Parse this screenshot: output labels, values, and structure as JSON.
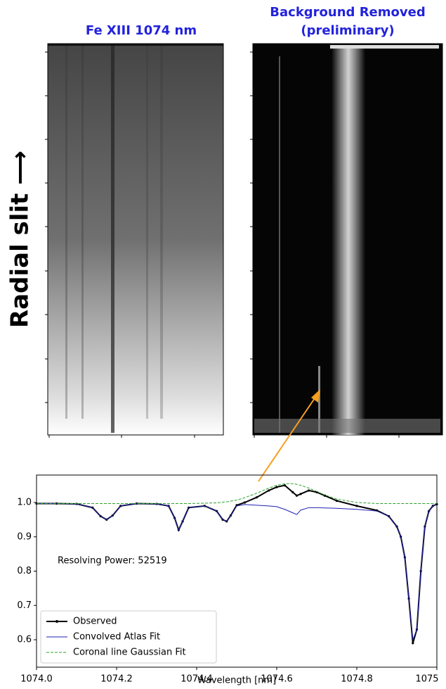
{
  "figure": {
    "slit_label": "Radial slit ⟶",
    "panels": [
      {
        "title": "Fe XIII 1074 nm"
      },
      {
        "title": "Background Removed",
        "subtitle": "(preliminary)"
      }
    ]
  },
  "chart_data": {
    "type": "line",
    "annotation": "Resolving Power: 52519",
    "xlabel": "Wavelength [nm]",
    "x": [
      1074.0,
      1074.05,
      1074.1,
      1074.14,
      1074.16,
      1074.175,
      1074.19,
      1074.21,
      1074.25,
      1074.3,
      1074.33,
      1074.345,
      1074.355,
      1074.365,
      1074.38,
      1074.42,
      1074.45,
      1074.465,
      1074.475,
      1074.485,
      1074.5,
      1074.52,
      1074.55,
      1074.58,
      1074.6,
      1074.62,
      1074.64,
      1074.65,
      1074.66,
      1074.68,
      1074.7,
      1074.72,
      1074.75,
      1074.8,
      1074.85,
      1074.88,
      1074.9,
      1074.91,
      1074.92,
      1074.93,
      1074.94,
      1074.95,
      1074.96,
      1074.97,
      1074.98,
      1074.99,
      1075.0
    ],
    "series": [
      {
        "name": "Observed",
        "color": "#000000",
        "linestyle": "solid",
        "marker": "dot",
        "values": [
          0.997,
          0.997,
          0.996,
          0.985,
          0.96,
          0.95,
          0.962,
          0.99,
          0.997,
          0.996,
          0.99,
          0.955,
          0.92,
          0.945,
          0.985,
          0.99,
          0.975,
          0.95,
          0.945,
          0.962,
          0.992,
          1.0,
          1.015,
          1.035,
          1.045,
          1.05,
          1.03,
          1.02,
          1.025,
          1.035,
          1.03,
          1.02,
          1.005,
          0.99,
          0.977,
          0.96,
          0.93,
          0.9,
          0.84,
          0.72,
          0.59,
          0.63,
          0.8,
          0.93,
          0.975,
          0.99,
          0.995
        ]
      },
      {
        "name": "Convolved Atlas Fit",
        "color": "#1f1fb4",
        "linestyle": "solid",
        "values": [
          0.997,
          0.997,
          0.996,
          0.985,
          0.96,
          0.95,
          0.962,
          0.99,
          0.997,
          0.996,
          0.99,
          0.955,
          0.92,
          0.945,
          0.985,
          0.99,
          0.975,
          0.95,
          0.945,
          0.96,
          0.99,
          0.994,
          0.992,
          0.99,
          0.988,
          0.98,
          0.97,
          0.965,
          0.978,
          0.985,
          0.985,
          0.984,
          0.983,
          0.98,
          0.975,
          0.96,
          0.93,
          0.9,
          0.84,
          0.72,
          0.6,
          0.63,
          0.8,
          0.93,
          0.975,
          0.99,
          0.995
        ]
      },
      {
        "name": "Coronal line Gaussian Fit",
        "color": "#2ca02c",
        "linestyle": "dashed",
        "values": [
          0.997,
          0.997,
          0.997,
          0.997,
          0.997,
          0.997,
          0.997,
          0.997,
          0.997,
          0.997,
          0.997,
          0.997,
          0.997,
          0.997,
          0.997,
          0.998,
          0.999,
          1.001,
          1.002,
          1.004,
          1.007,
          1.014,
          1.027,
          1.042,
          1.05,
          1.055,
          1.055,
          1.053,
          1.05,
          1.042,
          1.032,
          1.022,
          1.01,
          1.0,
          0.997,
          0.997,
          0.997,
          0.997,
          0.997,
          0.997,
          0.997,
          0.997,
          0.997,
          0.997,
          0.997,
          0.997,
          0.997
        ]
      }
    ],
    "xlim": [
      1074.0,
      1075.0
    ],
    "xticks": [
      {
        "value": 1074.0,
        "label": "1074.0"
      },
      1074.2,
      1074.4,
      1074.6,
      1074.8,
      {
        "value": 1075.0,
        "label": "1075.0"
      },
      1075
    ],
    "ylim": [
      0.52,
      1.08
    ],
    "yticks": [
      {
        "value": 0.6,
        "label": "0.6"
      },
      {
        "value": 0.7,
        "label": "0.7"
      },
      {
        "value": 0.8,
        "label": "0.8"
      },
      {
        "value": 0.9,
        "label": "0.9"
      },
      {
        "value": 1.0,
        "label": "1.0"
      }
    ],
    "legend": "lower left"
  }
}
